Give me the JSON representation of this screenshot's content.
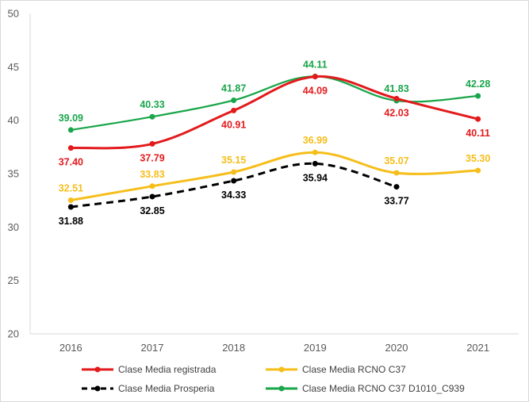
{
  "chart_data": {
    "type": "line",
    "title": "",
    "xlabel": "",
    "ylabel": "",
    "categories": [
      "2016",
      "2017",
      "2018",
      "2019",
      "2020",
      "2021"
    ],
    "ylim": [
      20,
      50
    ],
    "yticks": [
      20,
      25,
      30,
      35,
      40,
      45,
      50
    ],
    "grid": false,
    "legend_position": "bottom",
    "series": [
      {
        "name": "Clase Media registrada",
        "color": "#e31a1c",
        "dash": "solid",
        "values": [
          37.4,
          37.79,
          40.91,
          44.09,
          42.03,
          40.11
        ],
        "labels": [
          "37.40",
          "37.79",
          "40.91",
          "44.09",
          "42.03",
          "40.11"
        ],
        "label_side": [
          "below",
          "below",
          "below",
          "below",
          "below",
          "below"
        ]
      },
      {
        "name": "Clase Media RCNO C37",
        "color": "#f6be1a",
        "dash": "solid",
        "values": [
          32.51,
          33.83,
          35.15,
          36.99,
          35.07,
          35.3
        ],
        "labels": [
          "32.51",
          "33.83",
          "35.15",
          "36.99",
          "35.07",
          "35.30"
        ],
        "label_side": [
          "above",
          "above",
          "above",
          "above",
          "above",
          "above"
        ]
      },
      {
        "name": "Clase Media Prosperia",
        "color": "#000000",
        "dash": "dashed",
        "values": [
          31.88,
          32.85,
          34.33,
          35.94,
          33.77,
          null
        ],
        "labels": [
          "31.88",
          "32.85",
          "34.33",
          "35.94",
          "33.77",
          null
        ],
        "label_side": [
          "below",
          "below",
          "below",
          "below",
          "below",
          "below"
        ]
      },
      {
        "name": "Clase Media RCNO C37 D1010_C939",
        "color": "#1aa64a",
        "dash": "solid",
        "values": [
          39.09,
          40.33,
          41.87,
          44.11,
          41.83,
          42.28
        ],
        "labels": [
          "39.09",
          "40.33",
          "41.87",
          "44.11",
          "41.83",
          "42.28"
        ],
        "label_side": [
          "above",
          "above",
          "above",
          "above",
          "above",
          "above"
        ]
      }
    ],
    "legend": [
      {
        "series": 0,
        "label": "Clase Media registrada"
      },
      {
        "series": 1,
        "label": "Clase Media RCNO C37"
      },
      {
        "series": 2,
        "label": "Clase Media Prosperia"
      },
      {
        "series": 3,
        "label": "Clase Media RCNO C37 D1010_C939"
      }
    ]
  }
}
